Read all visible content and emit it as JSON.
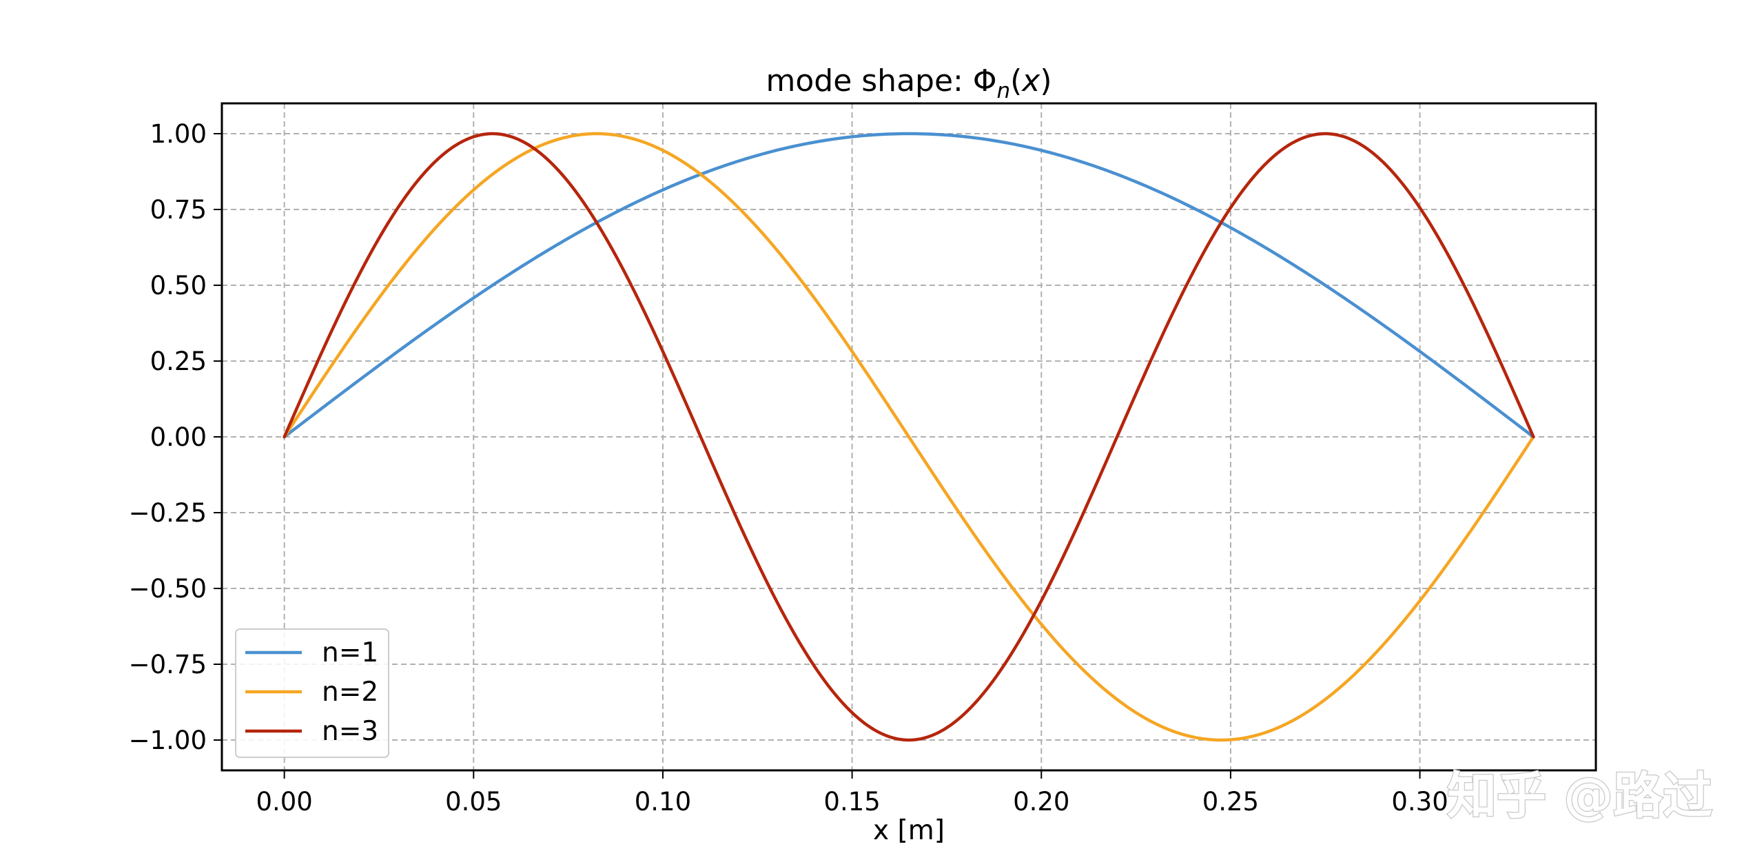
{
  "chart_data": {
    "type": "line",
    "title": "mode shape: Φn(x)",
    "title_parts": {
      "base": "mode shape: Φ",
      "sub": "n",
      "rest_open": "(",
      "var": "x",
      "rest_close": ")"
    },
    "xlabel": "x [m]",
    "ylabel": "",
    "xlim": [
      -0.0165,
      0.3465
    ],
    "ylim": [
      -1.1,
      1.1
    ],
    "x_ticks": [
      0.0,
      0.05,
      0.1,
      0.15,
      0.2,
      0.25,
      0.3
    ],
    "x_tick_labels": [
      "0.00",
      "0.05",
      "0.10",
      "0.15",
      "0.20",
      "0.25",
      "0.30"
    ],
    "y_ticks": [
      1.0,
      0.75,
      0.5,
      0.25,
      0.0,
      -0.25,
      -0.5,
      -0.75,
      -1.0
    ],
    "y_tick_labels": [
      "1.00",
      "0.75",
      "0.50",
      "0.25",
      "0.00",
      "−0.25",
      "−0.50",
      "−0.75",
      "−1.00"
    ],
    "grid": true,
    "legend_position": "lower-left",
    "beam_length": 0.33,
    "series": [
      {
        "name": "n=1",
        "mode": 1,
        "color": "#4a90d0",
        "peak_x": [
          0.165
        ],
        "function": "sin(1*pi*x/L)"
      },
      {
        "name": "n=2",
        "mode": 2,
        "color": "#f5a623",
        "peak_x": [
          0.0825,
          0.2475
        ],
        "function": "sin(2*pi*x/L)"
      },
      {
        "name": "n=3",
        "mode": 3,
        "color": "#b5260c",
        "peak_x": [
          0.055,
          0.165,
          0.275
        ],
        "function": "sin(3*pi*x/L)"
      }
    ]
  },
  "watermark": {
    "text": "知乎 @路过"
  }
}
